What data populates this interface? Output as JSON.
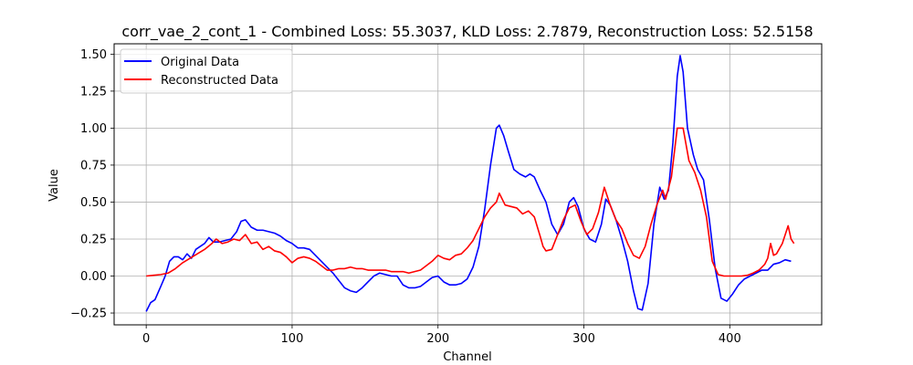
{
  "chart_data": {
    "type": "line",
    "title": "corr_vae_2_cont_1 - Combined Loss: 55.3037, KLD Loss: 2.7879, Reconstruction Loss: 52.5158",
    "xlabel": "Channel",
    "ylabel": "Value",
    "xlim": [
      -22,
      463
    ],
    "ylim": [
      -0.33,
      1.57
    ],
    "xticks": [
      0,
      100,
      200,
      300,
      400
    ],
    "yticks": [
      -0.25,
      0.0,
      0.25,
      0.5,
      0.75,
      1.0,
      1.25,
      1.5
    ],
    "xtick_labels": [
      "0",
      "100",
      "200",
      "300",
      "400"
    ],
    "ytick_labels": [
      "−0.25",
      "0.00",
      "0.25",
      "0.50",
      "0.75",
      "1.00",
      "1.25",
      "1.50"
    ],
    "grid": true,
    "legend_position": "top-left",
    "series": [
      {
        "name": "Original Data",
        "color": "#0000ff",
        "points": [
          [
            0,
            -0.24
          ],
          [
            3,
            -0.18
          ],
          [
            6,
            -0.16
          ],
          [
            10,
            -0.07
          ],
          [
            13,
            0.0
          ],
          [
            16,
            0.1
          ],
          [
            19,
            0.13
          ],
          [
            22,
            0.13
          ],
          [
            25,
            0.11
          ],
          [
            28,
            0.15
          ],
          [
            31,
            0.12
          ],
          [
            34,
            0.18
          ],
          [
            37,
            0.2
          ],
          [
            40,
            0.22
          ],
          [
            43,
            0.26
          ],
          [
            46,
            0.23
          ],
          [
            50,
            0.23
          ],
          [
            54,
            0.24
          ],
          [
            58,
            0.25
          ],
          [
            62,
            0.3
          ],
          [
            65,
            0.37
          ],
          [
            68,
            0.38
          ],
          [
            72,
            0.33
          ],
          [
            76,
            0.31
          ],
          [
            80,
            0.31
          ],
          [
            84,
            0.3
          ],
          [
            88,
            0.29
          ],
          [
            92,
            0.27
          ],
          [
            96,
            0.24
          ],
          [
            100,
            0.22
          ],
          [
            104,
            0.19
          ],
          [
            108,
            0.19
          ],
          [
            112,
            0.18
          ],
          [
            116,
            0.14
          ],
          [
            120,
            0.1
          ],
          [
            124,
            0.06
          ],
          [
            128,
            0.02
          ],
          [
            132,
            -0.03
          ],
          [
            136,
            -0.08
          ],
          [
            140,
            -0.1
          ],
          [
            144,
            -0.11
          ],
          [
            148,
            -0.08
          ],
          [
            152,
            -0.04
          ],
          [
            156,
            0.0
          ],
          [
            160,
            0.02
          ],
          [
            164,
            0.01
          ],
          [
            168,
            0.0
          ],
          [
            172,
            0.0
          ],
          [
            176,
            -0.06
          ],
          [
            180,
            -0.08
          ],
          [
            184,
            -0.08
          ],
          [
            188,
            -0.07
          ],
          [
            192,
            -0.04
          ],
          [
            196,
            -0.01
          ],
          [
            200,
            0.0
          ],
          [
            204,
            -0.04
          ],
          [
            208,
            -0.06
          ],
          [
            212,
            -0.06
          ],
          [
            216,
            -0.05
          ],
          [
            220,
            -0.02
          ],
          [
            224,
            0.06
          ],
          [
            228,
            0.2
          ],
          [
            232,
            0.45
          ],
          [
            236,
            0.75
          ],
          [
            240,
            1.0
          ],
          [
            242,
            1.02
          ],
          [
            245,
            0.95
          ],
          [
            248,
            0.85
          ],
          [
            252,
            0.72
          ],
          [
            256,
            0.69
          ],
          [
            260,
            0.67
          ],
          [
            263,
            0.69
          ],
          [
            266,
            0.67
          ],
          [
            270,
            0.58
          ],
          [
            274,
            0.5
          ],
          [
            278,
            0.35
          ],
          [
            282,
            0.28
          ],
          [
            286,
            0.35
          ],
          [
            290,
            0.5
          ],
          [
            293,
            0.53
          ],
          [
            296,
            0.47
          ],
          [
            300,
            0.32
          ],
          [
            304,
            0.25
          ],
          [
            308,
            0.23
          ],
          [
            312,
            0.35
          ],
          [
            315,
            0.52
          ],
          [
            318,
            0.48
          ],
          [
            322,
            0.38
          ],
          [
            326,
            0.25
          ],
          [
            330,
            0.1
          ],
          [
            334,
            -0.1
          ],
          [
            337,
            -0.22
          ],
          [
            340,
            -0.23
          ],
          [
            344,
            -0.05
          ],
          [
            348,
            0.35
          ],
          [
            352,
            0.6
          ],
          [
            355,
            0.52
          ],
          [
            358,
            0.58
          ],
          [
            361,
            0.9
          ],
          [
            364,
            1.35
          ],
          [
            366,
            1.49
          ],
          [
            368,
            1.38
          ],
          [
            371,
            1.0
          ],
          [
            375,
            0.82
          ],
          [
            378,
            0.72
          ],
          [
            382,
            0.65
          ],
          [
            386,
            0.38
          ],
          [
            390,
            0.05
          ],
          [
            394,
            -0.15
          ],
          [
            398,
            -0.17
          ],
          [
            402,
            -0.12
          ],
          [
            406,
            -0.06
          ],
          [
            410,
            -0.02
          ],
          [
            414,
            0.0
          ],
          [
            418,
            0.02
          ],
          [
            422,
            0.04
          ],
          [
            426,
            0.04
          ],
          [
            430,
            0.08
          ],
          [
            434,
            0.09
          ],
          [
            438,
            0.11
          ],
          [
            442,
            0.1
          ]
        ]
      },
      {
        "name": "Reconstructed Data",
        "color": "#ff0000",
        "points": [
          [
            0,
            0.0
          ],
          [
            5,
            0.005
          ],
          [
            10,
            0.01
          ],
          [
            15,
            0.02
          ],
          [
            20,
            0.05
          ],
          [
            25,
            0.09
          ],
          [
            30,
            0.12
          ],
          [
            35,
            0.15
          ],
          [
            40,
            0.18
          ],
          [
            45,
            0.22
          ],
          [
            48,
            0.25
          ],
          [
            52,
            0.22
          ],
          [
            56,
            0.23
          ],
          [
            60,
            0.25
          ],
          [
            64,
            0.24
          ],
          [
            68,
            0.28
          ],
          [
            72,
            0.22
          ],
          [
            76,
            0.23
          ],
          [
            80,
            0.18
          ],
          [
            84,
            0.2
          ],
          [
            88,
            0.17
          ],
          [
            92,
            0.16
          ],
          [
            96,
            0.13
          ],
          [
            100,
            0.09
          ],
          [
            104,
            0.12
          ],
          [
            108,
            0.13
          ],
          [
            112,
            0.12
          ],
          [
            116,
            0.1
          ],
          [
            120,
            0.07
          ],
          [
            124,
            0.04
          ],
          [
            128,
            0.04
          ],
          [
            132,
            0.05
          ],
          [
            136,
            0.05
          ],
          [
            140,
            0.06
          ],
          [
            144,
            0.05
          ],
          [
            148,
            0.05
          ],
          [
            152,
            0.04
          ],
          [
            156,
            0.04
          ],
          [
            160,
            0.04
          ],
          [
            164,
            0.04
          ],
          [
            168,
            0.03
          ],
          [
            172,
            0.03
          ],
          [
            176,
            0.03
          ],
          [
            180,
            0.02
          ],
          [
            184,
            0.03
          ],
          [
            188,
            0.04
          ],
          [
            192,
            0.07
          ],
          [
            196,
            0.1
          ],
          [
            200,
            0.14
          ],
          [
            204,
            0.12
          ],
          [
            208,
            0.11
          ],
          [
            212,
            0.14
          ],
          [
            216,
            0.15
          ],
          [
            220,
            0.19
          ],
          [
            224,
            0.24
          ],
          [
            228,
            0.32
          ],
          [
            232,
            0.4
          ],
          [
            236,
            0.46
          ],
          [
            240,
            0.5
          ],
          [
            242,
            0.56
          ],
          [
            246,
            0.48
          ],
          [
            250,
            0.47
          ],
          [
            254,
            0.46
          ],
          [
            258,
            0.42
          ],
          [
            262,
            0.44
          ],
          [
            266,
            0.4
          ],
          [
            270,
            0.27
          ],
          [
            272,
            0.2
          ],
          [
            274,
            0.17
          ],
          [
            278,
            0.18
          ],
          [
            282,
            0.28
          ],
          [
            286,
            0.38
          ],
          [
            290,
            0.46
          ],
          [
            294,
            0.48
          ],
          [
            298,
            0.37
          ],
          [
            302,
            0.28
          ],
          [
            306,
            0.32
          ],
          [
            310,
            0.43
          ],
          [
            314,
            0.6
          ],
          [
            318,
            0.48
          ],
          [
            322,
            0.38
          ],
          [
            326,
            0.32
          ],
          [
            330,
            0.22
          ],
          [
            334,
            0.14
          ],
          [
            338,
            0.12
          ],
          [
            342,
            0.2
          ],
          [
            346,
            0.35
          ],
          [
            350,
            0.48
          ],
          [
            354,
            0.58
          ],
          [
            356,
            0.52
          ],
          [
            360,
            0.67
          ],
          [
            364,
            1.0
          ],
          [
            368,
            1.0
          ],
          [
            372,
            0.78
          ],
          [
            376,
            0.7
          ],
          [
            380,
            0.58
          ],
          [
            384,
            0.4
          ],
          [
            388,
            0.1
          ],
          [
            392,
            0.01
          ],
          [
            396,
            0.0
          ],
          [
            400,
            0.0
          ],
          [
            404,
            0.0
          ],
          [
            408,
            0.0
          ],
          [
            412,
            0.005
          ],
          [
            416,
            0.02
          ],
          [
            420,
            0.04
          ],
          [
            424,
            0.08
          ],
          [
            426,
            0.12
          ],
          [
            428,
            0.22
          ],
          [
            430,
            0.14
          ],
          [
            432,
            0.15
          ],
          [
            436,
            0.22
          ],
          [
            440,
            0.34
          ],
          [
            442,
            0.25
          ],
          [
            444,
            0.22
          ]
        ]
      }
    ]
  }
}
